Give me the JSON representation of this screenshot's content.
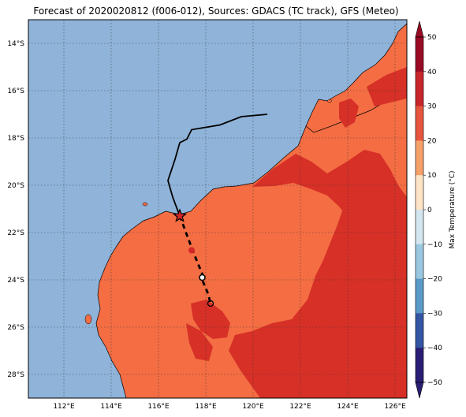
{
  "title": "Forecast of 2020020812 (f006-012), Sources: GDACS (TC track), GFS (Meteo)",
  "axes": {
    "lat_labels": [
      "14°S",
      "16°S",
      "18°S",
      "20°S",
      "22°S",
      "24°S",
      "26°S",
      "28°S"
    ],
    "lon_labels": [
      "112°E",
      "114°E",
      "116°E",
      "118°E",
      "120°E",
      "122°E",
      "124°E",
      "126°E"
    ]
  },
  "colorbar": {
    "label": "Max Temperature (°C)",
    "ticks": [
      "50",
      "40",
      "30",
      "20",
      "10",
      "0",
      "−10",
      "−20",
      "−30",
      "−40",
      "−50"
    ],
    "colors": [
      "#9b0a25",
      "#c9262c",
      "#e8553e",
      "#f6a06a",
      "#fee4c6",
      "#f7f7f7",
      "#d3e6f0",
      "#9ac8e0",
      "#5a9ac7",
      "#3455a4",
      "#2a1e74"
    ]
  },
  "legend_colors": {
    "ocean": "#8fb3d9",
    "land_warm": "#f46d43",
    "land_hot": "#d73027",
    "track": "#000000",
    "current_position": "#d62728"
  },
  "track": {
    "past_lonlat": [
      [
        116.9,
        -21.3
      ],
      [
        116.6,
        -20.5
      ],
      [
        116.4,
        -19.8
      ],
      [
        116.7,
        -18.9
      ],
      [
        116.9,
        -18.2
      ],
      [
        117.2,
        -18.05
      ],
      [
        117.4,
        -17.65
      ],
      [
        118.6,
        -17.45
      ],
      [
        119.5,
        -17.1
      ],
      [
        120.6,
        -17.0
      ]
    ],
    "forecast_lonlat": [
      [
        116.9,
        -21.3
      ],
      [
        117.2,
        -22.1
      ],
      [
        117.5,
        -22.9
      ],
      [
        117.85,
        -23.75
      ],
      [
        117.85,
        -24.0
      ],
      [
        118.1,
        -24.6
      ],
      [
        118.2,
        -25.0
      ]
    ],
    "current_lonlat": [
      116.9,
      -21.3
    ],
    "forecast_points": [
      {
        "lon": 117.4,
        "lat": -22.75,
        "style": "red"
      },
      {
        "lon": 117.85,
        "lat": -23.9,
        "style": "white"
      },
      {
        "lon": 118.2,
        "lat": -25.0,
        "style": "hollow"
      }
    ]
  }
}
